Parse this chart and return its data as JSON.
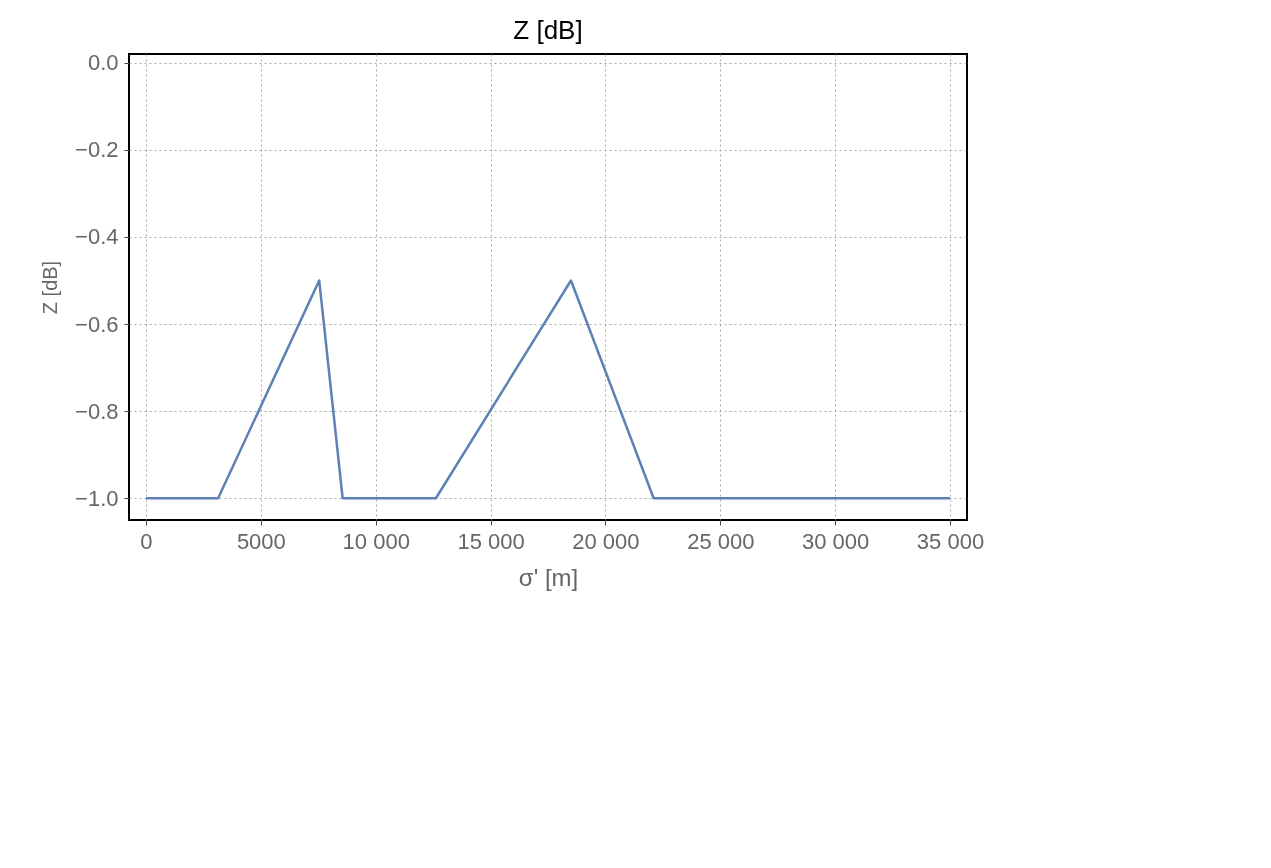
{
  "chart_data": {
    "type": "line",
    "title": "Z [dB]",
    "xlabel": "σ' [m]",
    "ylabel": "Z [dB]",
    "x": [
      0,
      3140,
      7540,
      8560,
      12620,
      18500,
      22100,
      35000
    ],
    "series": [
      {
        "color": "#5e81b5",
        "values": [
          -1.0,
          -1.0,
          -0.5,
          -1.0,
          -1.0,
          -0.5,
          -1.0,
          -1.0
        ]
      }
    ],
    "xlim": [
      -740,
      35740
    ],
    "ylim": [
      -1.05,
      0.02
    ],
    "xticks": [
      0,
      5000,
      {
        "value": 10000,
        "label": "10 000"
      },
      {
        "value": 15000,
        "label": "15 000"
      },
      {
        "value": 20000,
        "label": "20 000"
      },
      {
        "value": 25000,
        "label": "25 000"
      },
      {
        "value": 30000,
        "label": "30 000"
      },
      {
        "value": 35000,
        "label": "35 000"
      }
    ],
    "yticks": [
      {
        "value": 0,
        "label": "0.0"
      },
      {
        "value": -0.2,
        "label": "−0.2"
      },
      {
        "value": -0.4,
        "label": "−0.4"
      },
      {
        "value": -0.6,
        "label": "−0.6"
      },
      {
        "value": -0.8,
        "label": "−0.8"
      },
      {
        "value": -1.0,
        "label": "−1.0"
      }
    ],
    "grid": true,
    "line_style": "solid",
    "marker": "none"
  }
}
